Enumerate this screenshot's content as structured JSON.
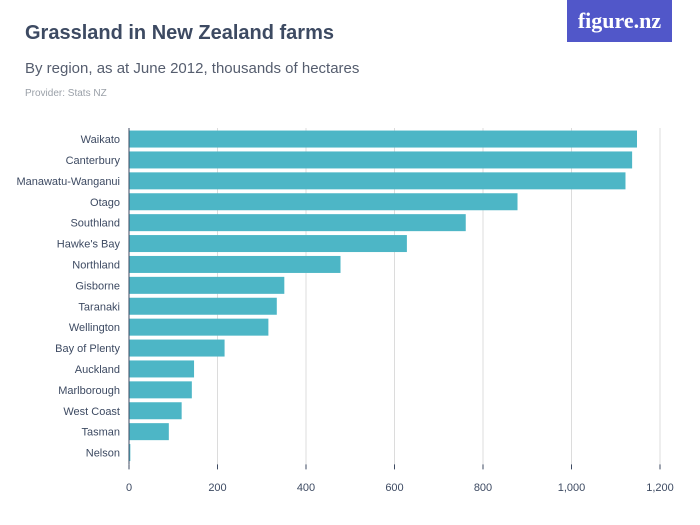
{
  "header": {
    "title": "Grassland in New Zealand farms",
    "subtitle": "By region, as at June 2012, thousands of hectares",
    "provider": "Provider: Stats NZ",
    "logo_text": "figure.nz"
  },
  "colors": {
    "bar": "#4db6c6",
    "grid": "#dcdcdc",
    "axis": "#3d4a62",
    "logo_bg": "#5157c9"
  },
  "chart_data": {
    "type": "bar",
    "orientation": "horizontal",
    "title": "Grassland in New Zealand farms",
    "subtitle": "By region, as at June 2012, thousands of hectares",
    "categories": [
      "Waikato",
      "Canterbury",
      "Manawatu-Wanganui",
      "Otago",
      "Southland",
      "Hawke's Bay",
      "Northland",
      "Gisborne",
      "Taranaki",
      "Wellington",
      "Bay of Plenty",
      "Auckland",
      "Marlborough",
      "West Coast",
      "Tasman",
      "Nelson"
    ],
    "values": [
      1148,
      1137,
      1122,
      878,
      761,
      628,
      478,
      351,
      334,
      315,
      216,
      147,
      142,
      119,
      90,
      3
    ],
    "xlim": [
      0,
      1200
    ],
    "xticks": [
      0,
      200,
      400,
      600,
      800,
      1000,
      1200
    ],
    "xtick_labels": [
      "0",
      "200",
      "400",
      "600",
      "800",
      "1,000",
      "1,200"
    ],
    "grid": true,
    "legend": "none"
  }
}
